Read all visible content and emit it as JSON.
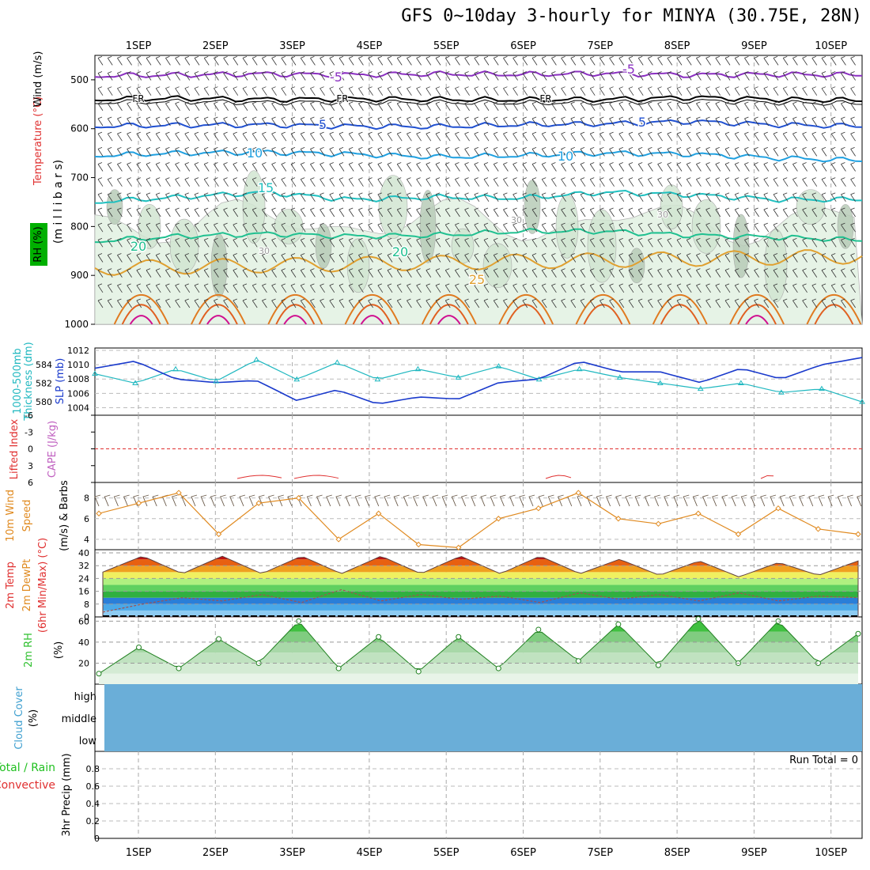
{
  "title": "GFS 0~10day 3-hourly for MINYA (30.75E, 28N)",
  "date_labels": [
    "1SEP",
    "2SEP",
    "3SEP",
    "4SEP",
    "5SEP",
    "6SEP",
    "7SEP",
    "8SEP",
    "9SEP",
    "10SEP"
  ],
  "panels": {
    "upper": {
      "labels": [
        {
          "text": "Wind (m/s)",
          "color": "#000000"
        },
        {
          "text": "Temperature (°C)",
          "color": "#e03030"
        },
        {
          "text": "RH (%)",
          "color": "#00b000"
        },
        {
          "text": "(m i l l i b a r s)",
          "color": "#000000"
        }
      ],
      "y_ticks": [
        "500",
        "600",
        "700",
        "800",
        "900",
        "1000"
      ],
      "contour_labels": [
        "-5",
        "FR",
        "5",
        "10",
        "15",
        "20",
        "25",
        "30"
      ]
    },
    "pressure": {
      "left_label_1": "1000-500mb",
      "left_label_2": "Thickness (dm)",
      "right_label": "SLP (mb)",
      "thickness_ticks": [
        "584",
        "582",
        "580"
      ],
      "slp_ticks": [
        "1012",
        "1010",
        "1008",
        "1006",
        "1004"
      ]
    },
    "stability": {
      "label_li": "Lifted Index",
      "label_cape": "CAPE (J/kg)",
      "ticks": [
        "-6",
        "-3",
        "0",
        "3",
        "6"
      ]
    },
    "wind10m": {
      "label_1": "10m Wind",
      "label_2": "Speed",
      "label_3": "(m/s) & Barbs",
      "ticks": [
        "8",
        "6",
        "4"
      ]
    },
    "temp2m": {
      "label_1": "2m Temp",
      "label_2": "2m DewPt",
      "label_3": "(6hr Min/Max) (°C)",
      "ticks": [
        "40",
        "32",
        "24",
        "16",
        "8",
        "0"
      ]
    },
    "rh2m": {
      "label": "2m RH",
      "unit": "(%)",
      "ticks": [
        "60",
        "40",
        "20"
      ]
    },
    "cloud": {
      "label_1": "Cloud Cover",
      "label_2": "(%)",
      "levels": [
        "high",
        "middle",
        "low"
      ]
    },
    "precip": {
      "label_1": "Total / Rain",
      "label_2": "Convective",
      "label_3": "3hr Precip (mm)",
      "ticks": [
        "0.8",
        "0.6",
        "0.4",
        "0.2",
        "0"
      ],
      "run_total": "Run Total = 0"
    }
  },
  "colors": {
    "slp": "#1a3acc",
    "thickness": "#20b8c0",
    "lifted_index": "#e03030",
    "wind_speed": "#e08a20",
    "rh_fill": "#30c030",
    "cloud": "#6aaed8",
    "grid": "#aaaaaa"
  },
  "chart_data": [
    {
      "type": "line",
      "title": "GFS 0~10day 3-hourly for MINYA (30.75E, 28N)",
      "x": [
        "1SEP",
        "2SEP",
        "3SEP",
        "4SEP",
        "5SEP",
        "6SEP",
        "7SEP",
        "8SEP",
        "9SEP",
        "10SEP"
      ],
      "ylabel": "millibars",
      "ylim": [
        1000,
        450
      ],
      "series": [
        {
          "name": "-5",
          "values": [
            492,
            490,
            488,
            490,
            488,
            489,
            487,
            490,
            489,
            490
          ]
        },
        {
          "name": "FR",
          "values": [
            540,
            538,
            540,
            539,
            540,
            541,
            540,
            536,
            540,
            542
          ]
        },
        {
          "name": "5",
          "values": [
            595,
            593,
            592,
            595,
            596,
            592,
            590,
            585,
            592,
            595
          ]
        },
        {
          "name": "10",
          "values": [
            655,
            650,
            648,
            652,
            658,
            655,
            650,
            652,
            660,
            665
          ]
        },
        {
          "name": "15",
          "values": [
            750,
            740,
            730,
            745,
            740,
            742,
            730,
            735,
            745,
            745
          ]
        },
        {
          "name": "20",
          "values": [
            830,
            820,
            815,
            820,
            818,
            810,
            810,
            818,
            822,
            828
          ]
        }
      ]
    },
    {
      "type": "line",
      "x_hours": [
        0,
        12,
        24,
        36,
        48,
        60,
        72,
        84,
        96,
        108,
        120,
        132,
        144,
        156,
        168,
        180,
        192,
        204,
        216,
        228
      ],
      "ylabel": "SLP (mb)",
      "ylim": [
        1003.5,
        1012
      ],
      "series": [
        {
          "name": "SLP (mb)",
          "values": [
            1009.5,
            1010.5,
            1008.0,
            1007.5,
            1007.8,
            1005.0,
            1006.5,
            1004.5,
            1005.5,
            1005.2,
            1007.5,
            1008.0,
            1010.5,
            1009.0,
            1009.0,
            1007.5,
            1009.5,
            1008.0,
            1010.0,
            1011.0
          ]
        },
        {
          "name": "1000-500mb Thickness (dm)",
          "values": [
            583.0,
            582.0,
            583.5,
            582.2,
            584.5,
            582.4,
            584.2,
            582.4,
            583.5,
            582.6,
            583.8,
            582.4,
            583.5,
            582.6,
            582.0,
            581.4,
            582.0,
            581.0,
            581.4,
            580.0
          ]
        }
      ]
    },
    {
      "type": "line",
      "x_hours": [
        0,
        12,
        24,
        36,
        48,
        60,
        72,
        84,
        96,
        108,
        120,
        132,
        144,
        156,
        168,
        180,
        192,
        204,
        216,
        228
      ],
      "ylabel": "10m Wind Speed (m/s)",
      "ylim": [
        3.5,
        9.5
      ],
      "series": [
        {
          "name": "Speed",
          "values": [
            6.5,
            7.5,
            8.5,
            4.5,
            7.5,
            8.0,
            4.0,
            6.5,
            3.5,
            3.2,
            6.0,
            7.0,
            8.5,
            6.0,
            5.5,
            6.5,
            4.5,
            7.0,
            5.0,
            4.5
          ]
        }
      ]
    },
    {
      "type": "area",
      "x_hours": [
        0,
        12,
        24,
        36,
        48,
        60,
        72,
        84,
        96,
        108,
        120,
        132,
        144,
        156,
        168,
        180,
        192,
        204,
        216,
        228
      ],
      "ylabel": "2m Temp (°C)",
      "ylim": [
        0,
        40
      ],
      "series": [
        {
          "name": "2m Temp",
          "values": [
            28,
            38,
            27,
            38,
            27,
            38,
            27,
            38,
            27,
            38,
            27,
            38,
            27,
            36,
            26,
            35,
            25,
            34,
            26,
            35
          ]
        },
        {
          "name": "2m DewPt",
          "values": [
            3,
            8,
            12,
            10,
            14,
            9,
            17,
            10,
            14,
            11,
            13,
            9,
            15,
            11,
            14,
            10,
            15,
            10,
            13,
            12
          ]
        }
      ]
    },
    {
      "type": "area",
      "x_hours": [
        0,
        12,
        24,
        36,
        48,
        60,
        72,
        84,
        96,
        108,
        120,
        132,
        144,
        156,
        168,
        180,
        192,
        204,
        216,
        228
      ],
      "ylabel": "2m RH (%)",
      "ylim": [
        0,
        62
      ],
      "series": [
        {
          "name": "2m RH",
          "values": [
            10,
            35,
            15,
            43,
            20,
            60,
            15,
            45,
            12,
            45,
            15,
            52,
            22,
            57,
            18,
            62,
            20,
            60,
            20,
            48
          ]
        }
      ]
    },
    {
      "type": "line",
      "ylabel": "3hr Precip (mm)",
      "ylim": [
        0,
        1
      ],
      "series": [
        {
          "name": "Total / Rain",
          "values": [
            0,
            0,
            0,
            0,
            0,
            0,
            0,
            0,
            0,
            0
          ]
        }
      ]
    }
  ]
}
